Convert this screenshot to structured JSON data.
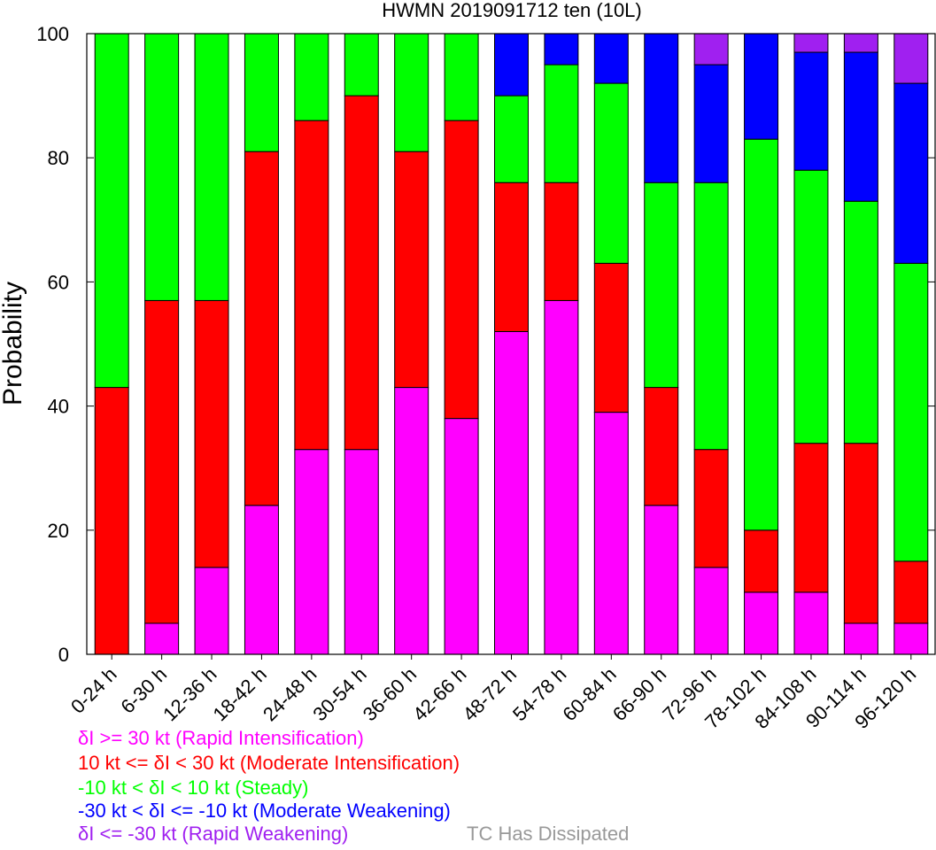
{
  "chart_data": {
    "type": "bar",
    "title": "HWMN 2019091712 ten (10L)",
    "ylabel": "Probability",
    "xlabel": "",
    "ylim": [
      0,
      100
    ],
    "yticks": [
      "0",
      "20",
      "40",
      "60",
      "80",
      "100"
    ],
    "categories": [
      "0-24 h",
      "6-30 h",
      "12-36 h",
      "18-42 h",
      "24-48 h",
      "30-54 h",
      "36-60 h",
      "42-66 h",
      "48-72 h",
      "54-78 h",
      "60-84 h",
      "66-90 h",
      "72-96 h",
      "78-102 h",
      "84-108 h",
      "90-114 h",
      "96-120 h"
    ],
    "stacked": true,
    "series": [
      {
        "name": "δI >= 30 kt (Rapid Intensification)",
        "color": "#ff00ff",
        "values": [
          0,
          5,
          14,
          24,
          33,
          33,
          43,
          38,
          52,
          57,
          39,
          24,
          14,
          10,
          10,
          5,
          5
        ]
      },
      {
        "name": "10 kt <= δI < 30 kt (Moderate Intensification)",
        "color": "#ff0000",
        "values": [
          43,
          52,
          43,
          57,
          53,
          57,
          38,
          48,
          24,
          19,
          24,
          19,
          19,
          10,
          24,
          29,
          10
        ]
      },
      {
        "name": "-10 kt < δI < 10 kt (Steady)",
        "color": "#00ff00",
        "values": [
          57,
          43,
          43,
          19,
          14,
          10,
          19,
          14,
          14,
          19,
          29,
          33,
          43,
          63,
          44,
          39,
          48
        ]
      },
      {
        "name": "-30 kt < δI <= -10 kt (Moderate Weakening)",
        "color": "#0000ff",
        "values": [
          0,
          0,
          0,
          0,
          0,
          0,
          0,
          0,
          10,
          5,
          8,
          24,
          19,
          17,
          19,
          24,
          29
        ]
      },
      {
        "name": "δI <= -30 kt (Rapid Weakening)",
        "color": "#a020f0",
        "values": [
          0,
          0,
          0,
          0,
          0,
          0,
          0,
          0,
          0,
          0,
          0,
          0,
          5,
          0,
          3,
          3,
          8
        ]
      }
    ],
    "extra_legend": {
      "label": "TC Has Dissipated",
      "color": "#999999"
    },
    "grid": false,
    "legend_position": "bottom-left"
  }
}
